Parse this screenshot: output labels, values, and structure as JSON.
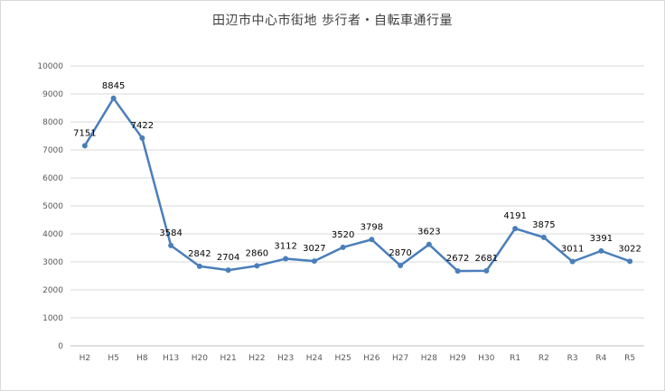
{
  "chart_data": {
    "type": "line",
    "title": "田辺市中心市街地 歩行者・自転車通行量",
    "xlabel": "",
    "ylabel": "",
    "categories": [
      "H2",
      "H5",
      "H8",
      "H13",
      "H20",
      "H21",
      "H22",
      "H23",
      "H24",
      "H25",
      "H26",
      "H27",
      "H28",
      "H29",
      "H30",
      "R1",
      "R2",
      "R3",
      "R4",
      "R5"
    ],
    "series": [
      {
        "values": [
          7151,
          8845,
          7422,
          3584,
          2842,
          2704,
          2860,
          3112,
          3027,
          3520,
          3798,
          2870,
          3623,
          2672,
          2681,
          4191,
          3875,
          3011,
          3391,
          3022
        ]
      }
    ],
    "ylim": [
      0,
      10000
    ],
    "yticks": [
      0,
      1000,
      2000,
      3000,
      4000,
      5000,
      6000,
      7000,
      8000,
      9000,
      10000
    ],
    "grid": true,
    "legend": "none",
    "colors": {
      "line": "#4a7ebb",
      "grid": "#d9d9d9",
      "axis": "#bfbfbf"
    }
  }
}
